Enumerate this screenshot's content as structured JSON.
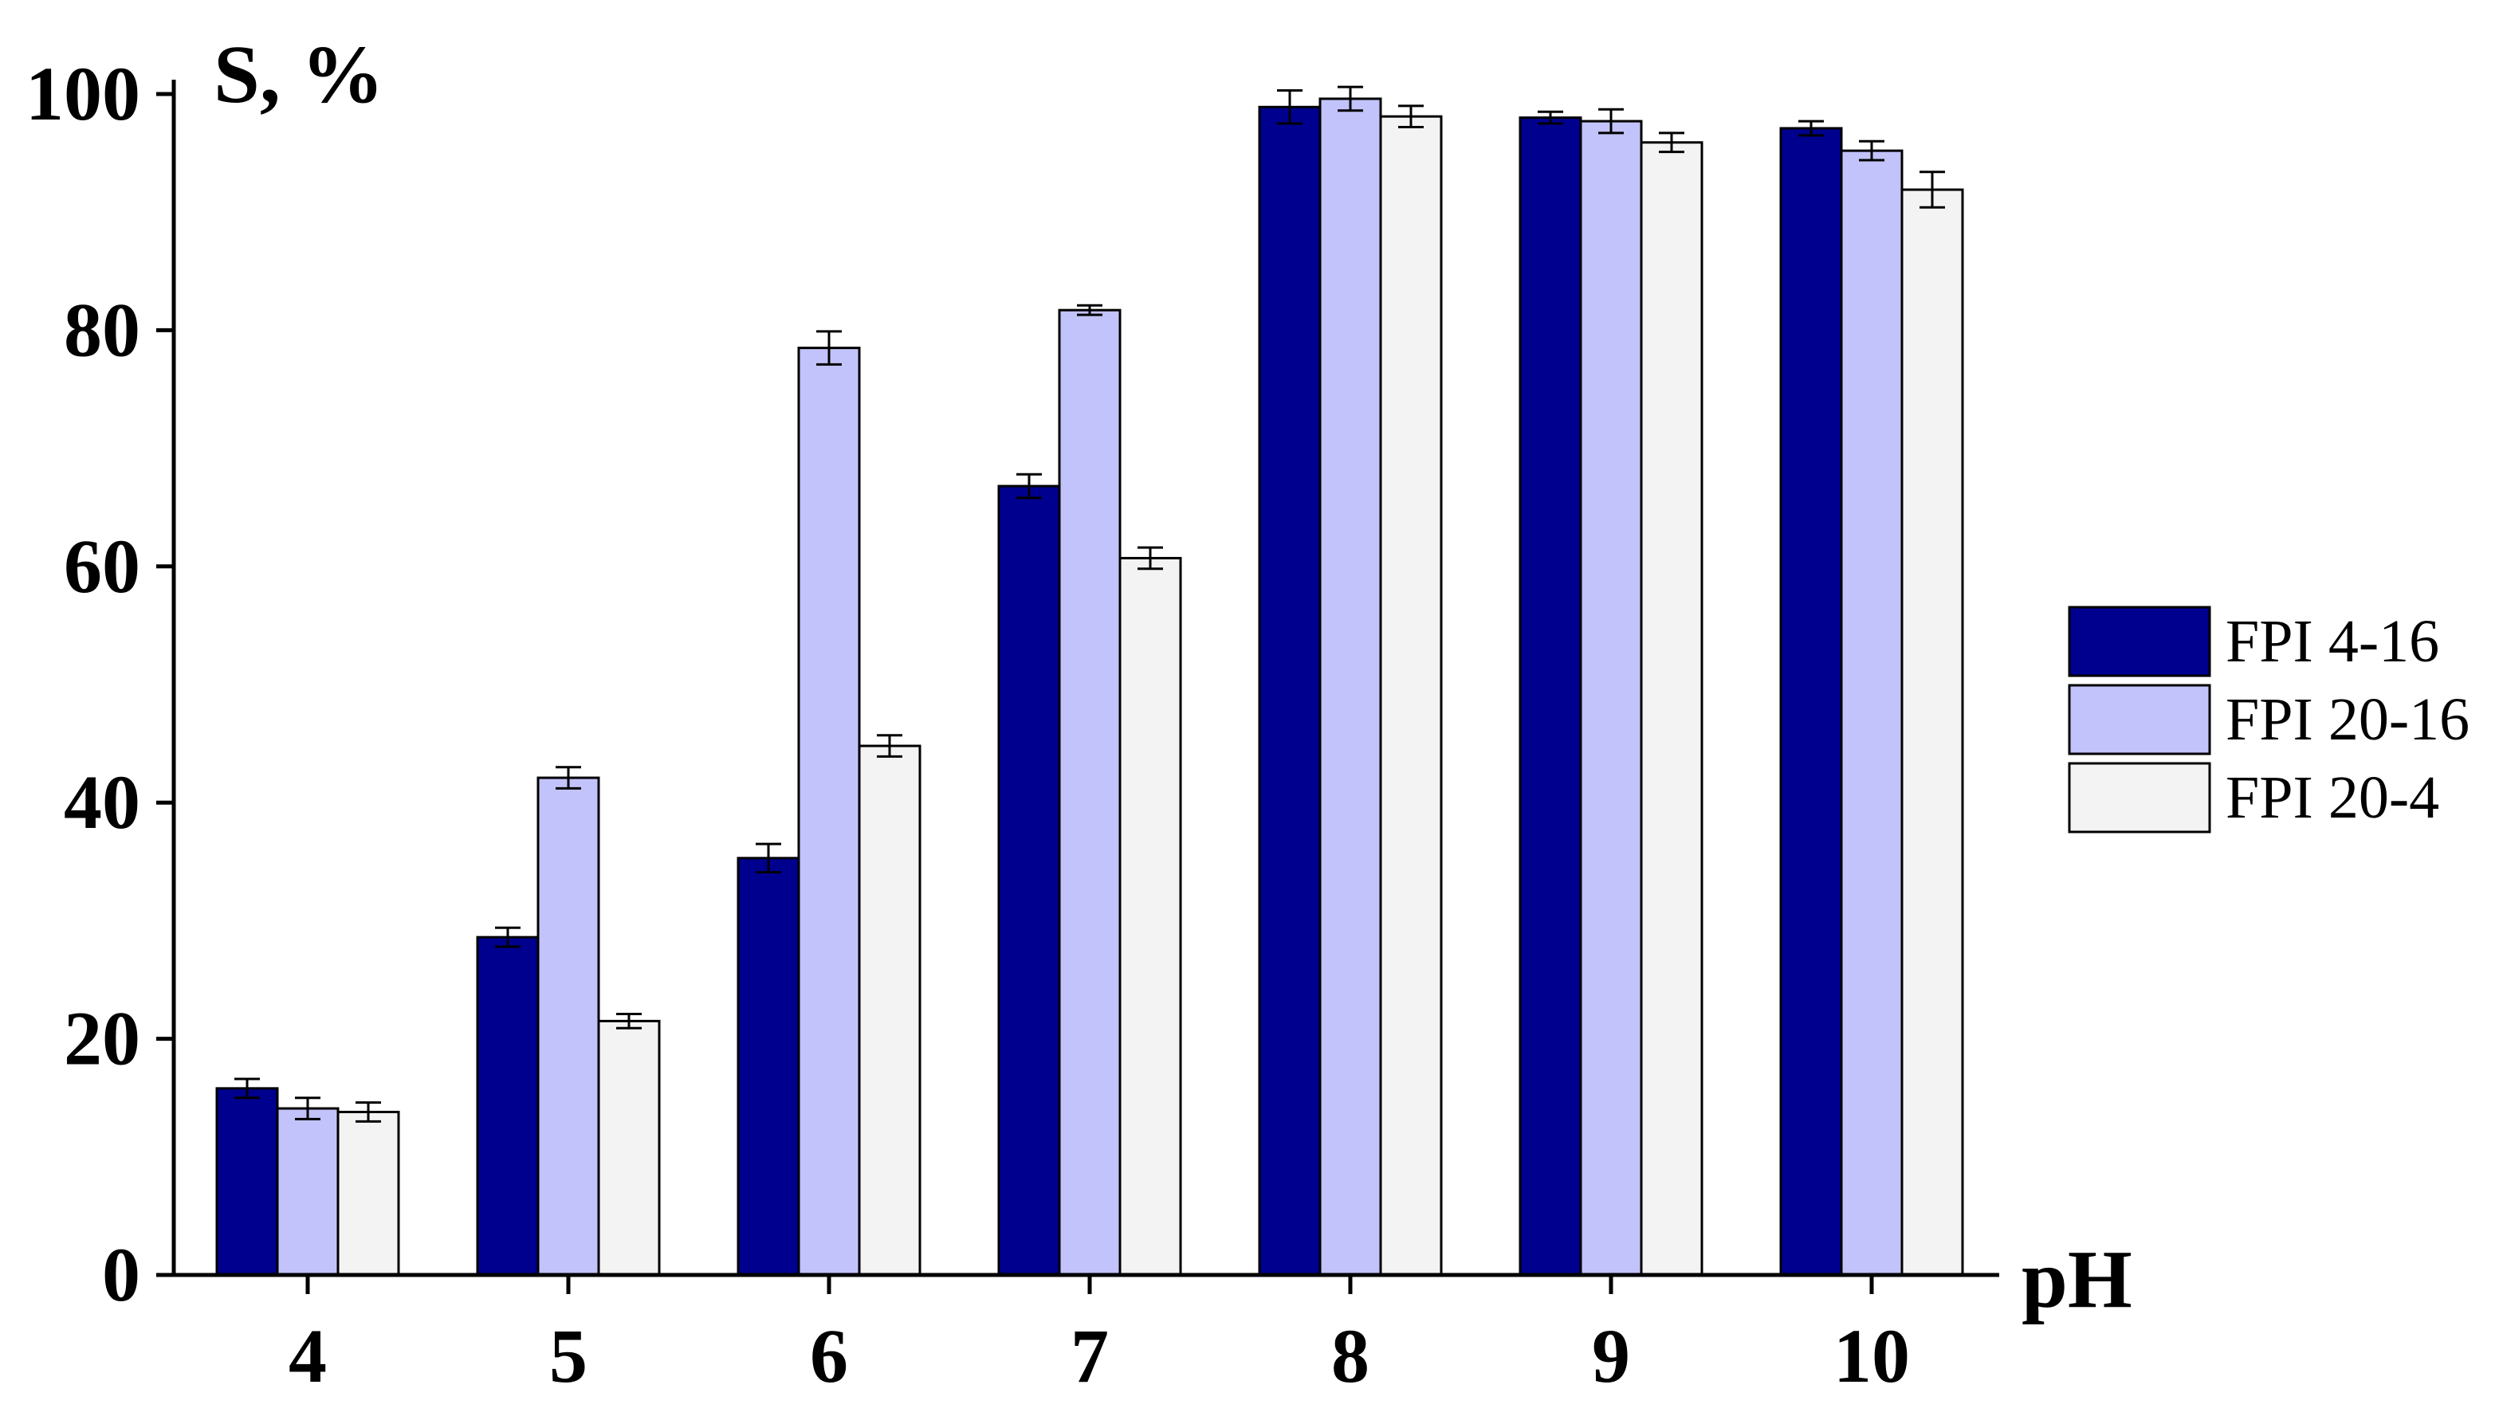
{
  "chart_data": {
    "type": "bar",
    "title": "",
    "xlabel": "pH",
    "ylabel": "S, %",
    "categories": [
      "4",
      "5",
      "6",
      "7",
      "8",
      "9",
      "10"
    ],
    "ylim": [
      0,
      100
    ],
    "yticks": [
      "0",
      "20",
      "40",
      "60",
      "80",
      "100"
    ],
    "grid": false,
    "legend_position": "right",
    "series": [
      {
        "name": "FPI 4-16",
        "color": "#00008f",
        "values": [
          15.8,
          28.6,
          35.3,
          66.8,
          98.9,
          98.0,
          97.1
        ],
        "errors": [
          0.8,
          0.8,
          1.2,
          1.0,
          1.4,
          0.5,
          0.6
        ]
      },
      {
        "name": "FPI 20-16",
        "color": "#c3c3fb",
        "values": [
          14.1,
          42.1,
          78.5,
          81.7,
          99.6,
          97.7,
          95.2
        ],
        "errors": [
          0.9,
          0.9,
          1.4,
          0.4,
          1.0,
          1.0,
          0.8
        ]
      },
      {
        "name": "FPI 20-4",
        "color": "#f3f3f3",
        "values": [
          13.8,
          21.5,
          44.8,
          60.7,
          98.1,
          95.9,
          91.9
        ],
        "errors": [
          0.8,
          0.6,
          0.9,
          0.9,
          0.9,
          0.8,
          1.5
        ]
      }
    ]
  }
}
